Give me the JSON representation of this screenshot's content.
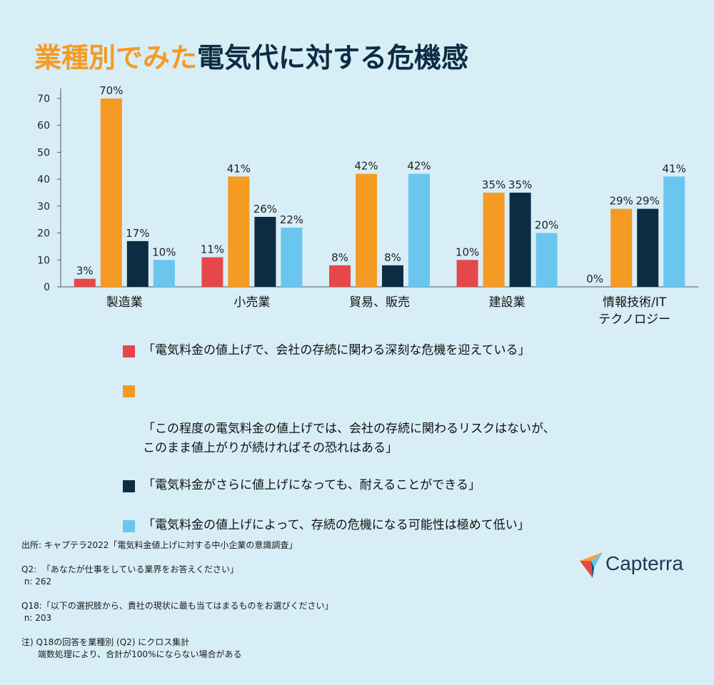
{
  "title": {
    "highlight": "業種別でみた",
    "rest": "電気代に対する危機感"
  },
  "colors": {
    "background": "#d7eef6",
    "series": [
      "#e5474b",
      "#f59a23",
      "#0c2c44",
      "#6ac6ef"
    ],
    "title_highlight": "#f59a23",
    "title_rest": "#0c2c44"
  },
  "chart_data": {
    "type": "bar",
    "title": "業種別でみた電気代に対する危機感",
    "categories": [
      "製造業",
      "小売業",
      "貿易、販売",
      "建設業",
      "情報技術/IT\nテクノロジー"
    ],
    "series": [
      {
        "name": "「電気料金の値上げで、会社の存続に関わる深刻な危機を迎えている」",
        "values": [
          3,
          11,
          8,
          10,
          0
        ]
      },
      {
        "name": "「この程度の電気料金の値上げでは、会社の存続に関わるリスクはないが、\nこのまま値上がりが続ければその恐れはある」",
        "values": [
          70,
          41,
          42,
          35,
          29
        ]
      },
      {
        "name": "「電気料金がさらに値上げになっても、耐えることができる」",
        "values": [
          17,
          26,
          8,
          35,
          29
        ]
      },
      {
        "name": "「電気料金の値上げによって、存続の危機になる可能性は極めて低い」",
        "values": [
          10,
          22,
          42,
          20,
          41
        ]
      }
    ],
    "ylim": [
      0,
      70
    ],
    "yticks": [
      0,
      10,
      20,
      30,
      40,
      50,
      60,
      70
    ],
    "value_suffix": "%",
    "xlabel": "",
    "ylabel": "",
    "legend_position": "bottom"
  },
  "footnotes": [
    "出所: キャプテラ2022「電気料金値上げに対する中小企業の意識調査」",
    "",
    "Q2:  「あなたが仕事をしている業界をお答えください」",
    " n: 262",
    "",
    "Q18:「以下の選択肢から、貴社の現状に最も当てはまるものをお選びください」",
    " n: 203",
    "",
    "注) Q18の回答を業種別 (Q2) にクロス集計",
    "      端数処理により、合計が100%にならない場合がある"
  ],
  "logo": {
    "text": "Capterra",
    "icon": "capterra-arrow-icon"
  }
}
